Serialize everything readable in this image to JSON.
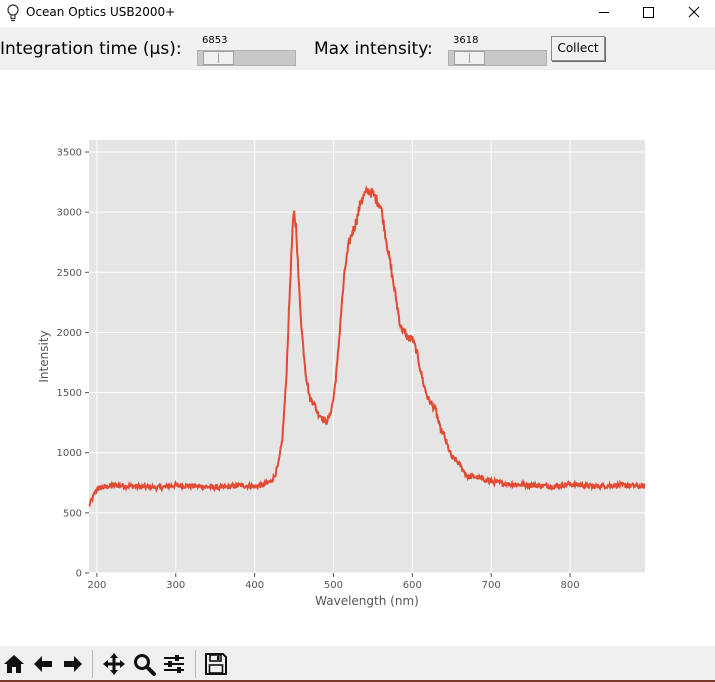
{
  "window": {
    "title": "Ocean Optics USB2000+",
    "icon": "lightbulb-icon"
  },
  "controls": {
    "integration_label": "Integration time (µs):",
    "integration_value": "6853",
    "integration_fraction": 0.07,
    "max_intensity_label": "Max intensity:",
    "max_intensity_value": "3618",
    "max_intensity_fraction": 0.07,
    "collect_label": "Collect"
  },
  "colors": {
    "line": "#e24a33",
    "plot_bg": "#e5e5e5",
    "grid": "#ffffff",
    "tick_text": "#555555"
  },
  "toolbar": {
    "icons": [
      "home-icon",
      "back-arrow-icon",
      "forward-arrow-icon",
      "pan-icon",
      "zoom-icon",
      "configure-subplots-icon",
      "save-icon"
    ]
  },
  "chart_data": {
    "type": "line",
    "xlabel": "Wavelength (nm)",
    "ylabel": "Intensity",
    "xlim": [
      190,
      895
    ],
    "ylim": [
      0,
      3600
    ],
    "xticks": [
      200,
      300,
      400,
      500,
      600,
      700,
      800
    ],
    "yticks": [
      0,
      500,
      1000,
      1500,
      2000,
      2500,
      3000,
      3500
    ],
    "grid": true,
    "series": [
      {
        "color": "#e24a33",
        "x": [
          190,
          200,
          220,
          250,
          280,
          300,
          330,
          360,
          380,
          400,
          410,
          420,
          425,
          430,
          435,
          440,
          445,
          448,
          450,
          453,
          456,
          460,
          465,
          470,
          475,
          480,
          485,
          490,
          495,
          500,
          505,
          510,
          515,
          520,
          525,
          530,
          535,
          540,
          545,
          550,
          555,
          560,
          565,
          570,
          575,
          580,
          585,
          590,
          595,
          600,
          605,
          610,
          615,
          620,
          625,
          630,
          635,
          640,
          645,
          650,
          655,
          660,
          665,
          670,
          680,
          690,
          700,
          720,
          750,
          780,
          800,
          830,
          860,
          895
        ],
        "y": [
          560,
          700,
          730,
          720,
          710,
          730,
          720,
          710,
          730,
          720,
          730,
          760,
          800,
          900,
          1100,
          1600,
          2400,
          2850,
          3000,
          2850,
          2400,
          2000,
          1650,
          1450,
          1420,
          1330,
          1300,
          1250,
          1300,
          1450,
          1750,
          2200,
          2550,
          2750,
          2850,
          2950,
          3100,
          3150,
          3180,
          3150,
          3100,
          3050,
          2850,
          2650,
          2450,
          2250,
          2050,
          2000,
          1950,
          1950,
          1850,
          1700,
          1550,
          1450,
          1400,
          1350,
          1200,
          1150,
          1050,
          960,
          940,
          900,
          850,
          800,
          800,
          780,
          760,
          740,
          730,
          720,
          740,
          720,
          730,
          720
        ]
      }
    ]
  }
}
